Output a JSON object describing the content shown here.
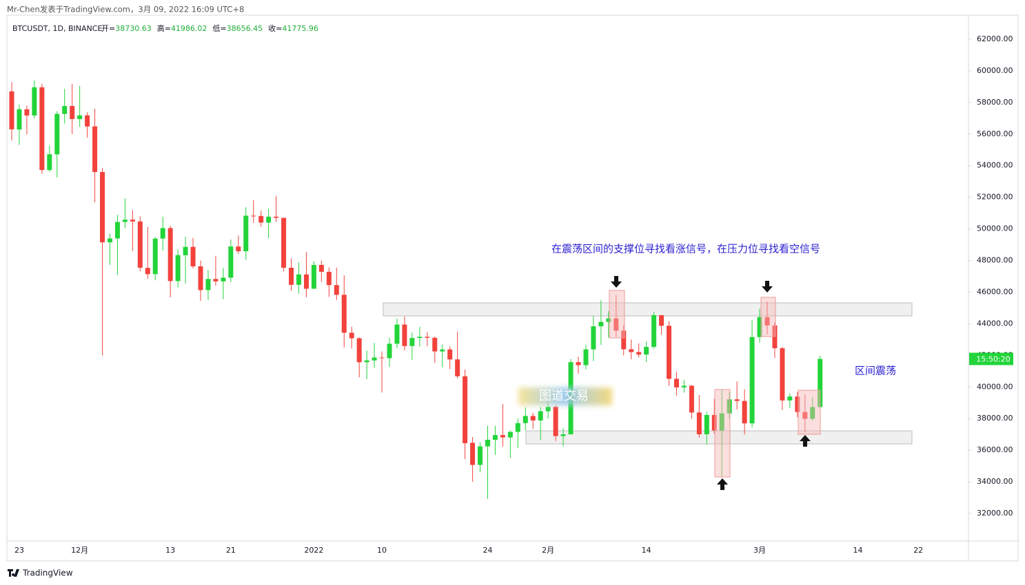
{
  "chart_data": {
    "type": "candlestick",
    "title": "Mr-Chen发表于TradingView.com，3月 09, 2022 16:09 UTC+8",
    "symbol": "BTCUSDT, 1D, BINANCE",
    "ohlc_legend": [
      {
        "label": "开=",
        "value": "38730.63"
      },
      {
        "label": "高=",
        "value": "41986.02"
      },
      {
        "label": "低=",
        "value": "38656.45"
      },
      {
        "label": "收=",
        "value": "41775.96"
      }
    ],
    "categories": [
      null,
      "23",
      null,
      null,
      null,
      null,
      null,
      null,
      null,
      "12月",
      null,
      null,
      null,
      null,
      null,
      null,
      null,
      null,
      null,
      null,
      null,
      "13",
      null,
      null,
      null,
      null,
      null,
      null,
      null,
      "21",
      null,
      null,
      null,
      null,
      null,
      null,
      null,
      null,
      null,
      null,
      "2022",
      null,
      null,
      null,
      null,
      null,
      null,
      null,
      null,
      "10",
      null,
      null,
      null,
      null,
      null,
      null,
      null,
      null,
      null,
      null,
      null,
      null,
      null,
      "24",
      null,
      null,
      null,
      null,
      null,
      null,
      null,
      "2月",
      null,
      null,
      null,
      null,
      null,
      null,
      null,
      null,
      null,
      null,
      null,
      null,
      "14",
      null,
      null,
      null,
      null,
      null,
      null,
      null,
      null,
      null,
      null,
      null,
      null,
      null,
      null,
      "3月",
      null,
      null,
      null,
      null,
      null,
      null,
      null,
      null,
      null,
      null,
      null,
      null,
      "14",
      null,
      null,
      null,
      null,
      null,
      null,
      null,
      "22",
      null,
      null,
      null,
      null,
      null,
      null
    ],
    "open": [
      58700,
      56290,
      57570,
      57176,
      58960,
      53723,
      54716,
      57274,
      57776,
      56950,
      57184,
      56484,
      53601,
      49152,
      49397,
      50441,
      50588,
      50471,
      47535,
      47140,
      49389,
      50053,
      46702,
      48336,
      48864,
      47633,
      46133,
      46834,
      46682,
      46914,
      48887,
      48588,
      50838,
      50819,
      50400,
      50775,
      50702,
      47544,
      46464,
      47121,
      46217,
      47722,
      47286,
      46446,
      45833,
      43431,
      43082,
      41566,
      41680,
      41864,
      41822,
      42735,
      43949,
      42592,
      43099,
      43177,
      43113,
      42250,
      42374,
      41744,
      40680,
      36471,
      35071,
      36244,
      36660,
      36958,
      36808,
      37160,
      37716,
      38166,
      37882,
      38467,
      38743,
      36896,
      37005,
      41572,
      41382,
      42380,
      43840,
      44118,
      44338,
      43565,
      42389,
      42210,
      42054,
      42535,
      44544,
      43873,
      40516,
      39974,
      40080,
      38387,
      37009,
      38230,
      37250,
      38328,
      39219,
      39116,
      37699,
      43160,
      44421,
      43893,
      42455,
      39149,
      39397,
      38420,
      37988,
      38730.63,
      null,
      null,
      null,
      null,
      null,
      null,
      null,
      null,
      null,
      null,
      null,
      null,
      null,
      null,
      null,
      null,
      null,
      null,
      null
    ],
    "high": [
      59290,
      57875,
      57800,
      59398,
      59180,
      55280,
      57445,
      58865,
      59176,
      59050,
      57375,
      57600,
      53859,
      49699,
      50891,
      51936,
      51200,
      50797,
      50125,
      49485,
      50777,
      50189,
      48700,
      49500,
      49436,
      47995,
      47392,
      48300,
      47537,
      49328,
      49576,
      51375,
      51810,
      51156,
      51280,
      52088,
      50704,
      48139,
      47900,
      48548,
      47954,
      47990,
      47570,
      47557,
      47070,
      43817,
      43145,
      42300,
      42786,
      42248,
      43100,
      44322,
      44458,
      43448,
      43800,
      43476,
      43180,
      42691,
      42574,
      43505,
      41100,
      36835,
      36499,
      37550,
      37545,
      38919,
      37234,
      38000,
      38720,
      38359,
      38744,
      39265,
      38855,
      37387,
      41772,
      41913,
      42656,
      44500,
      45492,
      44795,
      45821,
      43920,
      43000,
      42760,
      42876,
      44751,
      44549,
      44164,
      40959,
      40444,
      40125,
      39494,
      38430,
      39249,
      39843,
      39683,
      40348,
      39855,
      44225,
      44949,
      45400,
      44101,
      42527,
      39600,
      39693,
      39547,
      39362,
      41986.02,
      null,
      null,
      null,
      null,
      null,
      null,
      null,
      null,
      null,
      null,
      null,
      null,
      null,
      null,
      null,
      null,
      null,
      null,
      null
    ],
    "low": [
      55600,
      55317,
      55988,
      57000,
      53500,
      53610,
      53256,
      56666,
      56000,
      56458,
      55777,
      51680,
      42000,
      47727,
      47100,
      50039,
      48600,
      47320,
      46852,
      46751,
      48638,
      45672,
      46290,
      46547,
      47511,
      45456,
      45500,
      46406,
      45558,
      46630,
      48421,
      48046,
      50384,
      50142,
      49412,
      50449,
      47313,
      46096,
      45900,
      45678,
      46208,
      46654,
      45696,
      45500,
      42500,
      42430,
      40610,
      40501,
      41200,
      39650,
      41268,
      42450,
      42311,
      41725,
      42555,
      42581,
      41540,
      41250,
      41138,
      40553,
      35440,
      34008,
      34601,
      32917,
      35701,
      36234,
      35507,
      36155,
      37268,
      37351,
      36632,
      38000,
      36586,
      36250,
      36988,
      40843,
      41116,
      41645,
      42666,
      43117,
      43174,
      42000,
      41748,
      41870,
      41570,
      42427,
      43307,
      40073,
      39450,
      39639,
      38000,
      36800,
      36350,
      37036,
      34322,
      38014,
      38573,
      37000,
      37450,
      42809,
      43334,
      41833,
      38550,
      38650,
      38088,
      37155,
      37867,
      38656.45,
      null,
      null,
      null,
      null,
      null,
      null,
      null,
      null,
      null,
      null,
      null,
      null,
      null,
      null,
      null,
      null,
      null,
      null,
      null
    ],
    "close": [
      56300,
      57570,
      57176,
      58960,
      53726,
      54721,
      57274,
      57776,
      56950,
      57184,
      56480,
      53601,
      49152,
      49396,
      50441,
      50588,
      50471,
      47545,
      47140,
      49389,
      50053,
      46702,
      48343,
      48864,
      47632,
      46131,
      46834,
      46681,
      46914,
      48889,
      48588,
      50838,
      50821,
      50400,
      50775,
      50702,
      47543,
      46464,
      47120,
      46216,
      47722,
      47286,
      46446,
      45833,
      43431,
      43082,
      41566,
      41680,
      41864,
      41822,
      42735,
      43949,
      42591,
      43099,
      43177,
      43113,
      42250,
      42374,
      41744,
      40680,
      36445,
      35071,
      36244,
      36660,
      36958,
      36809,
      37160,
      37716,
      38166,
      37881,
      38467,
      38744,
      36896,
      37005,
      41571,
      41382,
      42380,
      43840,
      44118,
      44338,
      43566,
      42388,
      42209,
      42053,
      42535,
      44544,
      43873,
      40515,
      39974,
      40079,
      38386,
      37008,
      38230,
      37250,
      38328,
      39219,
      39116,
      37699,
      43160,
      44421,
      43892,
      42454,
      39148,
      39397,
      38420,
      37988,
      38730,
      41775.96,
      null,
      null,
      null,
      null,
      null,
      null,
      null,
      null,
      null,
      null,
      null,
      null,
      null,
      null,
      null,
      null,
      null,
      null,
      null
    ],
    "up_color": "#22d43a",
    "down_color": "#f2423c",
    "ylim": [
      30260,
      63611
    ],
    "yticks": [
      {
        "value": 32000,
        "label": "32000.00"
      },
      {
        "value": 34000,
        "label": "34000.00"
      },
      {
        "value": 36000,
        "label": "36000.00"
      },
      {
        "value": 38000,
        "label": "38000.00"
      },
      {
        "value": 40000,
        "label": "40000.00"
      },
      {
        "value": 42000,
        "label": "42000.00"
      },
      {
        "value": 44000,
        "label": "44000.00"
      },
      {
        "value": 46000,
        "label": "46000.00"
      },
      {
        "value": 48000,
        "label": "48000.00"
      },
      {
        "value": 50000,
        "label": "50000.00"
      },
      {
        "value": 52000,
        "label": "52000.00"
      },
      {
        "value": 54000,
        "label": "54000.00"
      },
      {
        "value": 56000,
        "label": "56000.00"
      },
      {
        "value": 58000,
        "label": "58000.00"
      },
      {
        "value": 60000,
        "label": "60000.00"
      },
      {
        "value": 62000,
        "label": "62000.00"
      }
    ],
    "price_tag": "15:50:20",
    "annotations": {
      "note": "在震荡区间的支撑位寻找看涨信号，在压力位寻找看空信号",
      "range_label": "区间震荡",
      "watermark": "图道交易"
    },
    "brand": "TradingView"
  }
}
